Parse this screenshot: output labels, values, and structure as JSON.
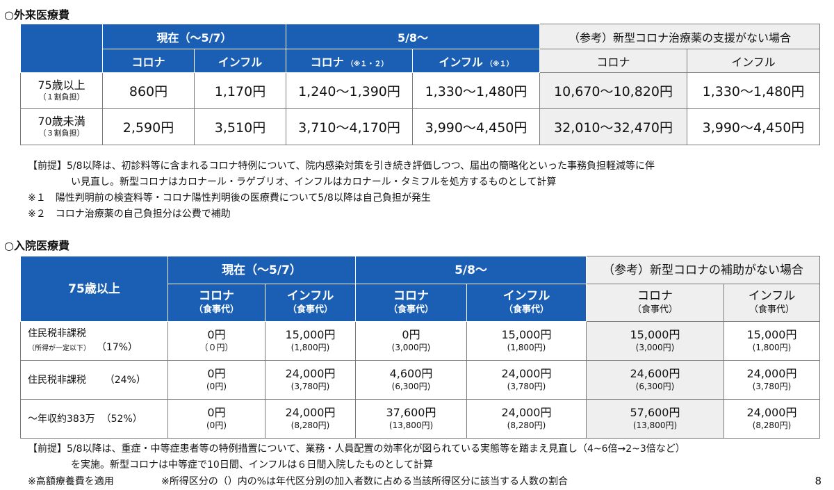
{
  "section1": {
    "title": "○外来医療費",
    "header": {
      "current": "現在（～5/7）",
      "after": "5/8～",
      "reference": "（参考）新型コロナ治療薬の支援がない場合",
      "corona": "コロナ",
      "flu": "インフル",
      "after_corona": "コロナ",
      "after_corona_note": "（※１・２）",
      "after_flu": "インフル",
      "after_flu_note": "（※１）"
    },
    "rows": [
      {
        "label": "75歳以上",
        "sub": "（１割負担）",
        "values": [
          "860円",
          "1,170円",
          "1,240～1,390円",
          "1,330～1,480円",
          "10,670～10,820円",
          "1,330～1,480円"
        ]
      },
      {
        "label": "70歳未満",
        "sub": "（３割負担）",
        "values": [
          "2,590円",
          "3,510円",
          "3,710～4,170円",
          "3,990～4,450円",
          "32,010～32,470円",
          "3,990～4,450円"
        ]
      }
    ],
    "notes": [
      "【前提】5/8以降は、初診料等に含まれるコロナ特例について、院内感染対策を引き続き評価しつつ、届出の簡略化といった事務負担軽減等に伴",
      "い見直し。新型コロナはカロナール・ラゲブリオ、インフルはカロナール・タミフルを処方するものとして計算",
      "※１　陽性判明前の検査料等・コロナ陽性判明後の医療費について5/8以降は自己負担が発生",
      "※２　コロナ治療薬の自己負担分は公費で補助"
    ]
  },
  "section2": {
    "title": "○入院医療費",
    "header": {
      "row_label": "75歳以上",
      "current": "現在（～5/7）",
      "after": "5/8～",
      "reference": "（参考）新型コロナの補助がない場合",
      "corona": "コロナ",
      "flu": "インフル",
      "meal": "（食事代）"
    },
    "rows": [
      {
        "label": "住民税非課税",
        "sub": "（所得が一定以下）",
        "pct": "（17%）",
        "values": [
          [
            "0円",
            "（０円）"
          ],
          [
            "15,000円",
            "(1,800円)"
          ],
          [
            "0円",
            "(3,000円)"
          ],
          [
            "15,000円",
            "(1,800円)"
          ],
          [
            "15,000円",
            "(3,000円)"
          ],
          [
            "15,000円",
            "(1,800円)"
          ]
        ]
      },
      {
        "label": "住民税非課税",
        "sub": "",
        "pct": "（24%）",
        "values": [
          [
            "0円",
            "(0円)"
          ],
          [
            "24,000円",
            "(3,780円)"
          ],
          [
            "4,600円",
            "(6,300円)"
          ],
          [
            "24,000円",
            "(3,780円)"
          ],
          [
            "24,600円",
            "(6,300円)"
          ],
          [
            "24,000円",
            "(3,780円)"
          ]
        ]
      },
      {
        "label": "～年収約383万",
        "sub": "",
        "pct": "（52%）",
        "values": [
          [
            "0円",
            "(0円)"
          ],
          [
            "24,000円",
            "(8,280円)"
          ],
          [
            "37,600円",
            "(13,800円)"
          ],
          [
            "24,000円",
            "(8,280円)"
          ],
          [
            "57,600円",
            "(13,800円)"
          ],
          [
            "24,000円",
            "(8,280円)"
          ]
        ]
      }
    ],
    "notes": [
      "【前提】5/8以降は、重症・中等症患者等の特例措置について、業務・人員配置の効率化が図られている実態等を踏まえ見直し（4~6倍→2~3倍など）",
      "を実施。新型コロナは中等症で10日間、インフルは６日間入院したものとして計算",
      "※高額療養費を適用",
      "※所得区分の（）内の%は年代区分別の加入者数に占める当該所得区分に該当する人数の割合"
    ]
  },
  "page_number": "8",
  "colors": {
    "header_blue": "#1b5fb4",
    "reference_gray": "#efefef"
  }
}
